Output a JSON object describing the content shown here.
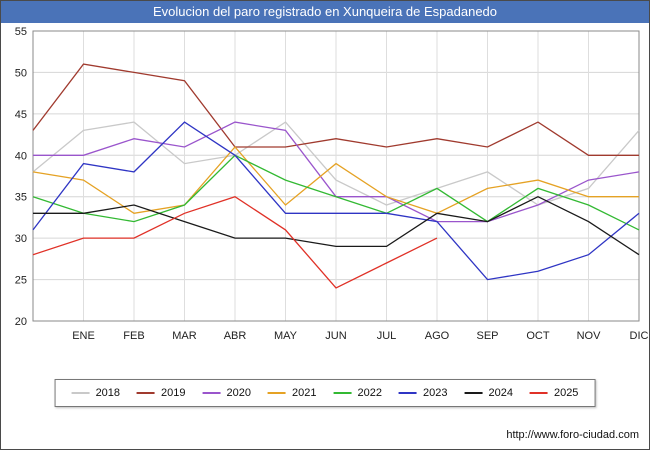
{
  "title": "Evolucion del paro registrado en Xunqueira de Espadanedo",
  "footer": {
    "url": "http://www.foro-ciudad.com"
  },
  "chart_data": {
    "type": "line",
    "title": "Evolucion del paro registrado en Xunqueira de Espadanedo",
    "xlabel": "",
    "ylabel": "",
    "ylim": [
      20,
      55
    ],
    "ytick_step": 5,
    "grid": true,
    "legend_position": "bottom",
    "categories": [
      "",
      "ENE",
      "FEB",
      "MAR",
      "ABR",
      "MAY",
      "JUN",
      "JUL",
      "AGO",
      "SEP",
      "OCT",
      "NOV",
      "DIC"
    ],
    "series": [
      {
        "name": "2018",
        "color": "#c9c9c9",
        "values": [
          38,
          43,
          44,
          39,
          40,
          44,
          37,
          34,
          36,
          38,
          34,
          36,
          43
        ]
      },
      {
        "name": "2019",
        "color": "#a03a2e",
        "values": [
          43,
          51,
          50,
          49,
          41,
          41,
          42,
          41,
          42,
          41,
          44,
          40,
          40
        ]
      },
      {
        "name": "2020",
        "color": "#9a55cc",
        "values": [
          40,
          40,
          42,
          41,
          44,
          43,
          35,
          35,
          32,
          32,
          34,
          37,
          38
        ]
      },
      {
        "name": "2021",
        "color": "#e5a224",
        "values": [
          38,
          37,
          33,
          34,
          41,
          34,
          39,
          35,
          33,
          36,
          37,
          35,
          35
        ]
      },
      {
        "name": "2022",
        "color": "#33b933",
        "values": [
          35,
          33,
          32,
          34,
          40,
          37,
          35,
          33,
          36,
          32,
          36,
          34,
          31
        ]
      },
      {
        "name": "2023",
        "color": "#2f35c4",
        "values": [
          31,
          39,
          38,
          44,
          40,
          33,
          33,
          33,
          32,
          25,
          26,
          28,
          33
        ]
      },
      {
        "name": "2024",
        "color": "#1a1a1a",
        "values": [
          33,
          33,
          34,
          32,
          30,
          30,
          29,
          29,
          33,
          32,
          35,
          32,
          28
        ]
      },
      {
        "name": "2025",
        "color": "#e03127",
        "values": [
          28,
          30,
          30,
          33,
          35,
          31,
          24,
          27,
          30,
          null,
          null,
          null,
          null
        ]
      }
    ]
  }
}
